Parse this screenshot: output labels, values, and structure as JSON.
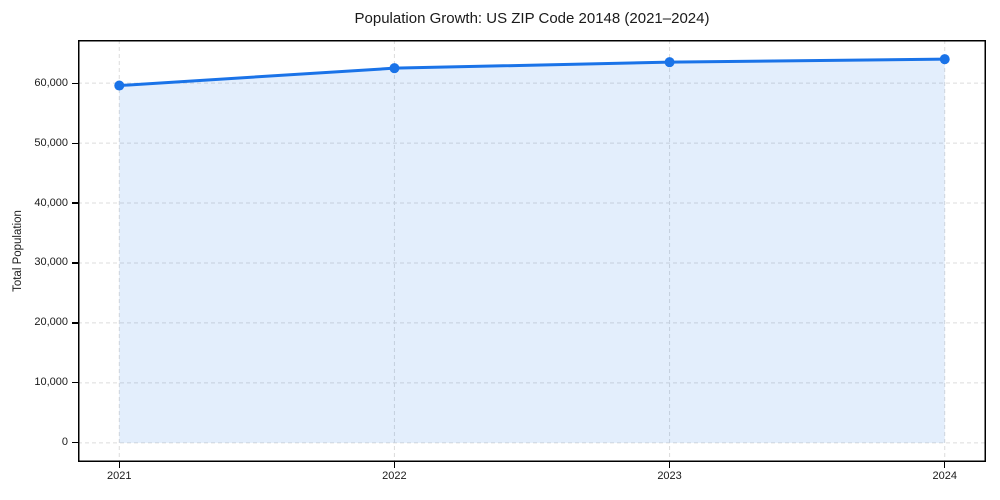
{
  "chart_data": {
    "type": "line",
    "title": "Population Growth: US ZIP Code 20148 (2021–2024)",
    "xlabel": "",
    "ylabel": "Total Population",
    "x": [
      2021,
      2022,
      2023,
      2024
    ],
    "series": [
      {
        "name": "Total Population",
        "values": [
          59600,
          62500,
          63500,
          64000
        ]
      }
    ],
    "area_fill": true,
    "fill_baseline": 0,
    "xlim": [
      2020.85,
      2024.15
    ],
    "ylim": [
      -3200,
      67200
    ],
    "yticks": [
      0,
      10000,
      20000,
      30000,
      40000,
      50000,
      60000
    ],
    "ytick_labels": [
      "0",
      "10,000",
      "20,000",
      "30,000",
      "40,000",
      "50,000",
      "60,000"
    ],
    "xticks": [
      2021,
      2022,
      2023,
      2024
    ],
    "xtick_labels": [
      "2021",
      "2022",
      "2023",
      "2024"
    ],
    "grid": true,
    "grid_style": "dashed",
    "legend": false,
    "colors": {
      "line": "#1a73e8",
      "marker": "#1a73e8",
      "fill": "rgba(26,115,232,0.12)",
      "grid": "#dcdcdc",
      "spine": "#000000",
      "text": "#1a1a1a"
    }
  }
}
